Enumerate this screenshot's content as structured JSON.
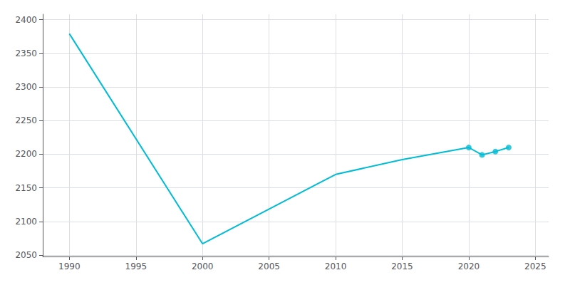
{
  "chart_data": {
    "type": "line",
    "series": [
      {
        "type": "line",
        "color": "#00bcd4",
        "x": [
          1990,
          2000,
          2010,
          2015,
          2020,
          2021,
          2022,
          2023
        ],
        "values": [
          2379,
          2067,
          2170,
          2192,
          2210,
          2199,
          2204,
          2210
        ]
      },
      {
        "type": "scatter",
        "color": "#00bcd4",
        "marker": "circle",
        "x": [
          2020,
          2021,
          2022,
          2023
        ],
        "values": [
          2210,
          2199,
          2204,
          2210
        ]
      }
    ],
    "xlim": [
      1988,
      2026
    ],
    "xticks": [
      1990,
      1995,
      2000,
      2005,
      2010,
      2015,
      2020,
      2025
    ],
    "ylim": [
      2048,
      2408
    ],
    "yticks": [
      2050,
      2100,
      2150,
      2200,
      2250,
      2300,
      2350,
      2400
    ],
    "grid": true
  }
}
